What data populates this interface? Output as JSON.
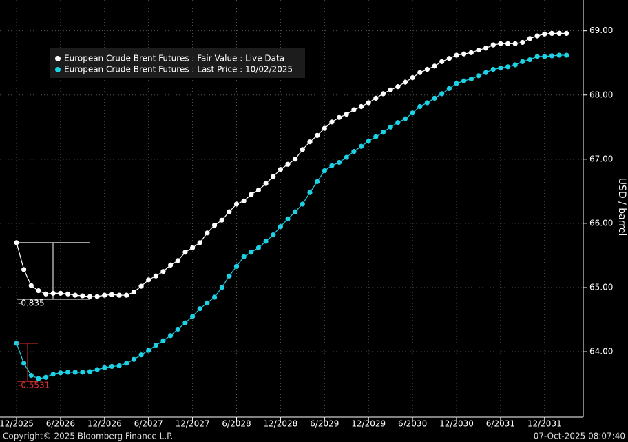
{
  "chart_data": {
    "type": "line",
    "y_label": "USD / barrel",
    "categories": [
      "12/2025",
      null,
      null,
      null,
      null,
      null,
      "6/2026",
      null,
      null,
      null,
      null,
      null,
      "12/2026",
      null,
      null,
      null,
      null,
      null,
      "6/2027",
      null,
      null,
      null,
      null,
      null,
      "12/2027",
      null,
      null,
      null,
      null,
      null,
      "6/2028",
      null,
      null,
      null,
      null,
      null,
      "12/2028",
      null,
      null,
      null,
      null,
      null,
      "6/2029",
      null,
      null,
      null,
      null,
      null,
      "12/2029",
      null,
      null,
      null,
      null,
      null,
      "6/2030",
      null,
      null,
      null,
      null,
      null,
      "12/2030",
      null,
      null,
      null,
      null,
      null,
      "6/2031",
      null,
      null,
      null,
      null,
      null,
      "12/2031",
      null,
      null,
      null
    ],
    "series": [
      {
        "name": "European Crude Brent Futures : Fair Value : Live Data",
        "color": "#ffffff",
        "values": [
          65.7,
          65.28,
          65.03,
          64.95,
          64.9,
          64.91,
          64.91,
          64.9,
          64.88,
          64.87,
          64.86,
          64.86,
          64.88,
          64.89,
          64.88,
          64.88,
          64.93,
          65.02,
          65.12,
          65.18,
          65.25,
          65.35,
          65.42,
          65.55,
          65.62,
          65.7,
          65.85,
          65.97,
          66.05,
          66.18,
          66.3,
          66.35,
          66.45,
          66.52,
          66.62,
          66.73,
          66.84,
          66.92,
          67.0,
          67.15,
          67.27,
          67.37,
          67.48,
          67.58,
          67.65,
          67.7,
          67.77,
          67.82,
          67.88,
          67.95,
          68.02,
          68.08,
          68.13,
          68.2,
          68.27,
          68.35,
          68.4,
          68.45,
          68.52,
          68.57,
          68.62,
          68.64,
          68.66,
          68.7,
          68.73,
          68.78,
          68.8,
          68.8,
          68.8,
          68.82,
          68.88,
          68.92,
          68.95,
          68.96,
          68.96,
          68.96
        ]
      },
      {
        "name": "European Crude Brent Futures : Last Price : 10/02/2025",
        "color": "#1ed2e6",
        "values": [
          64.13,
          63.82,
          63.63,
          63.58,
          63.6,
          63.65,
          63.67,
          63.68,
          63.68,
          63.68,
          63.69,
          63.72,
          63.75,
          63.77,
          63.78,
          63.82,
          63.88,
          63.95,
          64.02,
          64.1,
          64.17,
          64.25,
          64.35,
          64.45,
          64.55,
          64.67,
          64.76,
          64.85,
          65.0,
          65.18,
          65.33,
          65.48,
          65.55,
          65.62,
          65.72,
          65.82,
          65.95,
          66.07,
          66.18,
          66.3,
          66.48,
          66.65,
          66.82,
          66.9,
          66.95,
          67.03,
          67.12,
          67.2,
          67.28,
          67.35,
          67.42,
          67.5,
          67.57,
          67.63,
          67.72,
          67.82,
          67.88,
          67.95,
          68.02,
          68.1,
          68.18,
          68.22,
          68.25,
          68.3,
          68.35,
          68.4,
          68.42,
          68.44,
          68.47,
          68.52,
          68.55,
          68.6,
          68.6,
          68.61,
          68.62,
          68.62
        ]
      }
    ],
    "annotations": [
      {
        "text": "-0.835",
        "color": "#ffffff"
      },
      {
        "text": "-0.5531",
        "color": "#e03030"
      }
    ],
    "ylim": [
      62.98,
      69.48
    ],
    "yticks": [
      {
        "value": 64,
        "label": "64.00"
      },
      {
        "value": 65,
        "label": "65.00"
      },
      {
        "value": 66,
        "label": "66.00"
      },
      {
        "value": 67,
        "label": "67.00"
      },
      {
        "value": 68,
        "label": "68.00"
      },
      {
        "value": 69,
        "label": "69.00"
      }
    ],
    "grid": true,
    "legend": "top-left"
  },
  "footer": {
    "copyright": "Copyright© 2025 Bloomberg Finance L.P.",
    "timestamp": "07-Oct-2025 08:07:40"
  }
}
